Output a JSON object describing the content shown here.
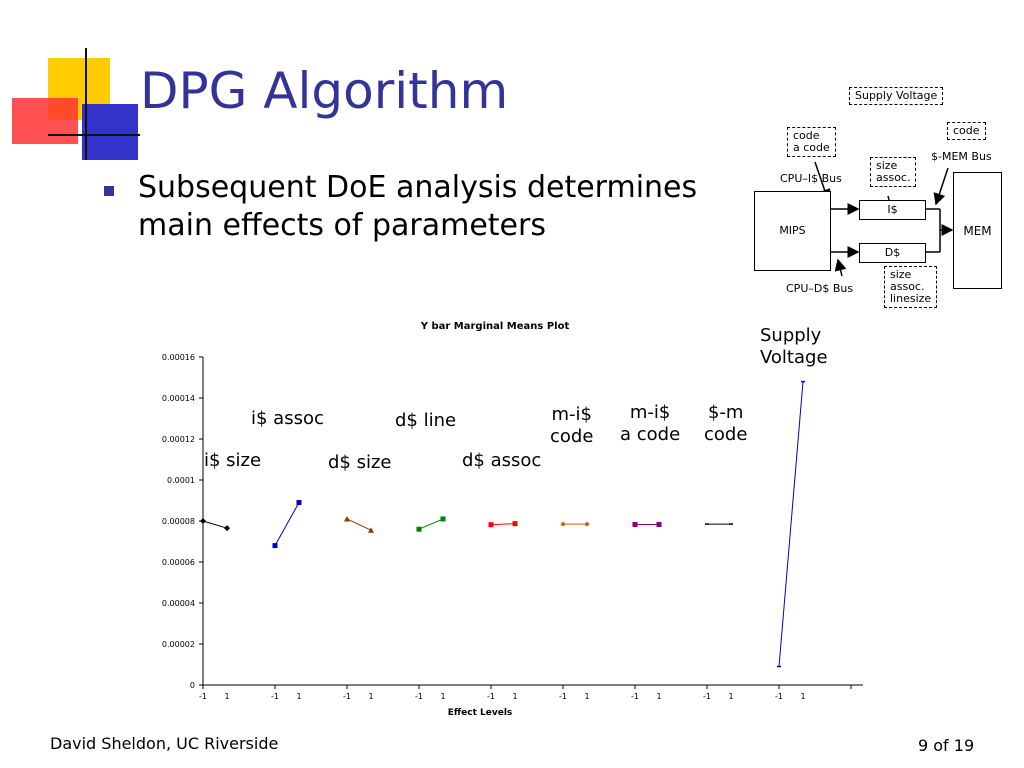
{
  "slide": {
    "title": "DPG Algorithm",
    "bullet_line1": "Subsequent DoE analysis determines",
    "bullet_line2": "main effects of parameters",
    "footer_left": "David Sheldon, UC Riverside",
    "footer_right": "9 of 19",
    "accent_color": "#333399"
  },
  "diagram": {
    "supply_voltage": "Supply Voltage",
    "code_top": "code",
    "mem_bus": "$-MEM Bus",
    "code_box_line1": "code",
    "code_box_line2": "a code",
    "cpu_i_bus": "CPU–I$ Bus",
    "size_assoc_line1": "size",
    "size_assoc_line2": "assoc.",
    "mips": "MIPS",
    "icache": "I$",
    "dcache": "D$",
    "mem": "MEM",
    "cpu_d_bus": "CPU–D$ Bus",
    "dcache_params_line1": "size",
    "dcache_params_line2": "assoc.",
    "dcache_params_line3": "linesize"
  },
  "effect_labels": {
    "i_size": "i$ size",
    "i_assoc": "i$ assoc",
    "d_size": "d$ size",
    "d_line": "d$ line",
    "d_assoc": "d$ assoc",
    "mi_code_1": "m-i$",
    "mi_code_2": "code",
    "mi_acode_1": "m-i$",
    "mi_acode_2": "a code",
    "m_code_1": "$-m",
    "m_code_2": "code",
    "supply_1": "Supply",
    "supply_2": "Voltage"
  },
  "chart_data": {
    "type": "line",
    "title": "Y bar Marginal Means Plot",
    "xlabel": "Effect Levels",
    "ylabel": "",
    "ylim": [
      0,
      0.00016
    ],
    "yticks": [
      "0",
      "0.00002",
      "0.00004",
      "0.00006",
      "0.00008",
      "0.0001",
      "0.00012",
      "0.00014",
      "0.00016"
    ],
    "xtick_labels": [
      "-1",
      "1"
    ],
    "grid": false,
    "series": [
      {
        "color": "#000000",
        "marker": "diamond",
        "values": [
          8e-05,
          7.65e-05
        ]
      },
      {
        "color": "#0000cc",
        "marker": "square",
        "values": [
          6.8e-05,
          8.9e-05
        ]
      },
      {
        "color": "#993300",
        "marker": "triangle",
        "values": [
          8.1e-05,
          7.55e-05
        ]
      },
      {
        "color": "#008000",
        "marker": "square",
        "values": [
          7.6e-05,
          8.1e-05
        ]
      },
      {
        "color": "#ff0000",
        "marker": "square",
        "values": [
          7.82e-05,
          7.87e-05
        ]
      },
      {
        "color": "#cc6600",
        "marker": "circle",
        "values": [
          7.85e-05,
          7.85e-05
        ]
      },
      {
        "color": "#800080",
        "marker": "square",
        "values": [
          7.83e-05,
          7.83e-05
        ]
      },
      {
        "color": "#000000",
        "marker": "dash",
        "values": [
          7.85e-05,
          7.85e-05
        ]
      },
      {
        "color": "#0000cc",
        "marker": "dash",
        "values": [
          9e-06,
          0.000148
        ]
      }
    ]
  }
}
